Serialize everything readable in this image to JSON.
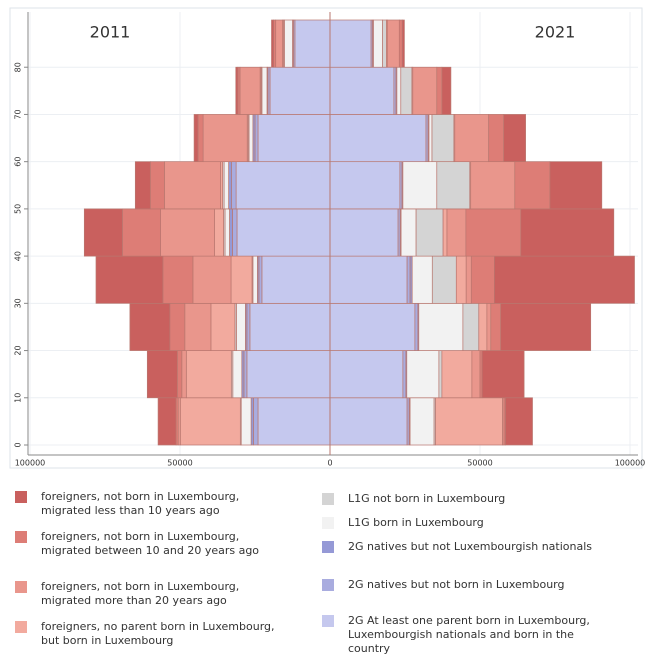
{
  "chart_data": {
    "type": "population_pyramid",
    "bins": [
      0,
      10,
      20,
      30,
      40,
      50,
      60,
      70,
      80,
      90
    ],
    "ylim": [
      0,
      90
    ],
    "yticks": [
      0,
      10,
      20,
      30,
      40,
      50,
      60,
      70,
      80
    ],
    "xlim": [
      -100000,
      100000
    ],
    "xticks": [
      {
        "value": -100000,
        "label": "100000"
      },
      {
        "value": -50000,
        "label": "50000"
      },
      0,
      50000,
      100000
    ],
    "series": [
      {
        "name": "2G At least one parent born in Luxembourg, Luxembourgish nationals and born in the country",
        "color": "#c5c8ee"
      },
      {
        "name": "2G natives but not born in Luxembourg",
        "color": "#a9acdf"
      },
      {
        "name": "2G natives but not Luxembourgish nationals",
        "color": "#9599d6"
      },
      {
        "name": "L1G born in Luxembourg",
        "color": "#f2f2f2"
      },
      {
        "name": "L1G not born in Luxembourg",
        "color": "#d4d4d4"
      },
      {
        "name": "foreigners, no parent born in Luxembourg, but born in Luxembourg",
        "color": "#f2aa9e"
      },
      {
        "name": "foreigners, not born in Luxembourg, migrated more than 20 years ago",
        "color": "#e9968c"
      },
      {
        "name": "foreigners, not born in Luxembourg, migrated between 10 and 20 years ago",
        "color": "#dd7d76"
      },
      {
        "name": "foreigners, not born in Luxembourg, migrated less than 10 years ago",
        "color": "#c9605e"
      }
    ],
    "sides": [
      {
        "title": "2011",
        "direction": "left",
        "series_values": [
          [
            24000,
            27700,
            26700,
            22700,
            31000,
            31300,
            24000,
            20000,
            11700
          ],
          [
            1500,
            1000,
            1000,
            1000,
            1500,
            1500,
            1000,
            700,
            500
          ],
          [
            800,
            700,
            500,
            500,
            1000,
            1000,
            700,
            300,
            300
          ],
          [
            3300,
            3000,
            3000,
            1500,
            1500,
            1500,
            1300,
            1700,
            2700
          ],
          [
            300,
            500,
            500,
            300,
            500,
            500,
            300,
            300,
            300
          ],
          [
            20000,
            15000,
            8000,
            7000,
            3000,
            700,
            300,
            300,
            300
          ],
          [
            700,
            1500,
            8700,
            12700,
            18000,
            18700,
            14700,
            6700,
            2300
          ],
          [
            700,
            1500,
            5000,
            10000,
            12700,
            4700,
            1700,
            700,
            700
          ],
          [
            6000,
            10000,
            13300,
            22300,
            12700,
            5000,
            1300,
            700,
            700
          ]
        ]
      },
      {
        "title": "2021",
        "direction": "right",
        "series_values": [
          [
            25700,
            24300,
            28300,
            25700,
            22700,
            23300,
            32000,
            21300,
            13700
          ],
          [
            700,
            1000,
            1000,
            1000,
            700,
            700,
            700,
            700,
            500
          ],
          [
            300,
            300,
            300,
            700,
            300,
            300,
            300,
            300,
            300
          ],
          [
            8000,
            10700,
            14700,
            6700,
            5000,
            11300,
            1000,
            1300,
            3000
          ],
          [
            500,
            1000,
            5300,
            8000,
            9000,
            11000,
            7300,
            3700,
            1300
          ],
          [
            22300,
            10000,
            2700,
            3300,
            1300,
            300,
            300,
            300,
            300
          ],
          [
            500,
            2700,
            1300,
            1700,
            6300,
            14700,
            11300,
            8000,
            4000
          ],
          [
            500,
            700,
            3300,
            7700,
            18300,
            11700,
            5000,
            1700,
            1000
          ],
          [
            9000,
            14000,
            30000,
            46700,
            31000,
            17300,
            7300,
            3000,
            700
          ]
        ]
      }
    ]
  }
}
